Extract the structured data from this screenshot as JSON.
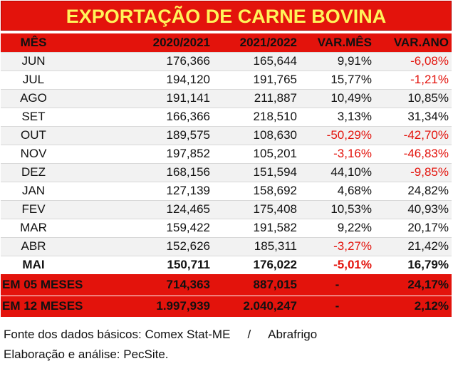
{
  "title": "EXPORTAÇÃO DE CARNE BOVINA",
  "colors": {
    "header_bg": "#e3130c",
    "title_text": "#fff45a",
    "negative": "#e3130c",
    "stripe": "#f2f2f2"
  },
  "headers": {
    "mes": "MÊS",
    "y1": "2020/2021",
    "y2": "2021/2022",
    "var_mes": "VAR.MÊS",
    "var_ano": "VAR.ANO"
  },
  "rows": [
    {
      "mes": "JUN",
      "y1": "176,366",
      "y2": "165,644",
      "var_mes": "9,91%",
      "var_ano": "-6,08%"
    },
    {
      "mes": "JUL",
      "y1": "194,120",
      "y2": "191,765",
      "var_mes": "15,77%",
      "var_ano": "-1,21%"
    },
    {
      "mes": "AGO",
      "y1": "191,141",
      "y2": "211,887",
      "var_mes": "10,49%",
      "var_ano": "10,85%"
    },
    {
      "mes": "SET",
      "y1": "166,366",
      "y2": "218,510",
      "var_mes": "3,13%",
      "var_ano": "31,34%"
    },
    {
      "mes": "OUT",
      "y1": "189,575",
      "y2": "108,630",
      "var_mes": "-50,29%",
      "var_ano": "-42,70%"
    },
    {
      "mes": "NOV",
      "y1": "197,852",
      "y2": "105,201",
      "var_mes": "-3,16%",
      "var_ano": "-46,83%"
    },
    {
      "mes": "DEZ",
      "y1": "168,156",
      "y2": "151,594",
      "var_mes": "44,10%",
      "var_ano": "-9,85%"
    },
    {
      "mes": "JAN",
      "y1": "127,139",
      "y2": "158,692",
      "var_mes": "4,68%",
      "var_ano": "24,82%"
    },
    {
      "mes": "FEV",
      "y1": "124,465",
      "y2": "175,408",
      "var_mes": "10,53%",
      "var_ano": "40,93%"
    },
    {
      "mes": "MAR",
      "y1": "159,422",
      "y2": "191,582",
      "var_mes": "9,22%",
      "var_ano": "20,17%"
    },
    {
      "mes": "ABR",
      "y1": "152,626",
      "y2": "185,311",
      "var_mes": "-3,27%",
      "var_ano": "21,42%"
    },
    {
      "mes": "MAI",
      "y1": "150,711",
      "y2": "176,022",
      "var_mes": "-5,01%",
      "var_ano": "16,79%"
    }
  ],
  "totals": [
    {
      "label": "EM 05 MESES",
      "y1": "714,363",
      "y2": "887,015",
      "var_mes": "-",
      "var_ano": "24,17%"
    },
    {
      "label": "EM 12 MESES",
      "y1": "1.997,939",
      "y2": "2.040,247",
      "var_mes": "-",
      "var_ano": "2,12%"
    }
  ],
  "footer": {
    "source": "Fonte dos dados básicos: Comex Stat-ME",
    "separator": "/",
    "source2": "Abrafrigo",
    "analysis": "Elaboração e análise: PecSite."
  }
}
